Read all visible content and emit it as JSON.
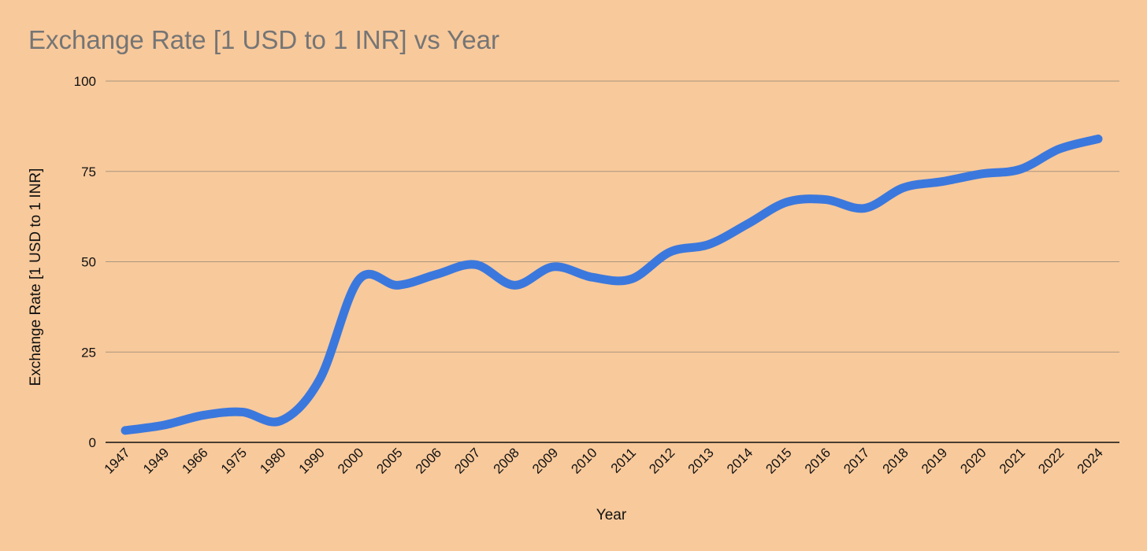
{
  "chart_data": {
    "type": "line",
    "title": "Exchange Rate [1 USD to 1 INR] vs Year",
    "xlabel": "Year",
    "ylabel": "Exchange Rate [1 USD to 1 INR]",
    "categories": [
      "1947",
      "1949",
      "1966",
      "1975",
      "1980",
      "1990",
      "2000",
      "2005",
      "2006",
      "2007",
      "2008",
      "2009",
      "2010",
      "2011",
      "2012",
      "2013",
      "2014",
      "2015",
      "2016",
      "2017",
      "2018",
      "2019",
      "2020",
      "2021",
      "2022",
      "2024"
    ],
    "series": [
      {
        "values": [
          3.3,
          4.8,
          7.5,
          8.4,
          6.0,
          17.5,
          45.0,
          43.5,
          46.5,
          49.2,
          43.5,
          48.6,
          45.7,
          45.2,
          52.7,
          54.8,
          60.5,
          66.5,
          67.2,
          64.8,
          70.5,
          72.2,
          74.3,
          75.6,
          81.2,
          84.0
        ]
      }
    ],
    "ylim": [
      0,
      100
    ],
    "yticks": [
      0,
      25,
      50,
      75,
      100
    ],
    "grid": true,
    "legend": "none",
    "colors": {
      "series": "#3b78dd",
      "background": "#f8c99b",
      "grid": "#a9957e",
      "axis": "#111111",
      "title": "#757575"
    }
  }
}
